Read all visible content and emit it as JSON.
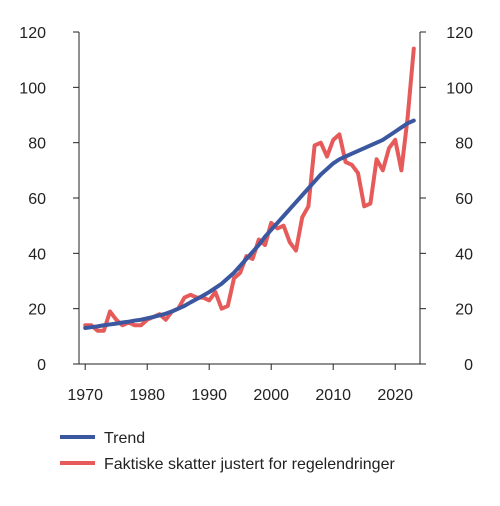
{
  "chart_data": {
    "type": "line",
    "title": "",
    "xlabel": "",
    "ylabel": "",
    "xlim": [
      1969,
      2024
    ],
    "ylim": [
      0,
      120
    ],
    "x_ticks": [
      1970,
      1980,
      1990,
      2000,
      2010,
      2020
    ],
    "y_ticks": [
      0,
      20,
      40,
      60,
      80,
      100,
      120
    ],
    "y_axis_both_sides": true,
    "grid": false,
    "legend_position": "bottom-left",
    "x": [
      1970,
      1971,
      1972,
      1973,
      1974,
      1975,
      1976,
      1977,
      1978,
      1979,
      1980,
      1981,
      1982,
      1983,
      1984,
      1985,
      1986,
      1987,
      1988,
      1989,
      1990,
      1991,
      1992,
      1993,
      1994,
      1995,
      1996,
      1997,
      1998,
      1999,
      2000,
      2001,
      2002,
      2003,
      2004,
      2005,
      2006,
      2007,
      2008,
      2009,
      2010,
      2011,
      2012,
      2013,
      2014,
      2015,
      2016,
      2017,
      2018,
      2019,
      2020,
      2021,
      2022,
      2023
    ],
    "series": [
      {
        "name": "Trend",
        "color": "#3a57a0",
        "values": [
          13,
          13.3,
          13.6,
          14,
          14.3,
          14.6,
          15,
          15.3,
          15.7,
          16,
          16.5,
          17,
          17.6,
          18.2,
          19,
          20,
          21,
          22.3,
          23.5,
          24.7,
          26,
          27.5,
          29,
          31,
          33,
          35.5,
          38,
          40.5,
          43,
          46,
          48.5,
          51,
          53.5,
          56,
          58.5,
          61,
          63.5,
          66,
          68.5,
          70.5,
          72.5,
          74,
          75,
          76,
          77,
          78,
          79,
          80,
          81,
          82.5,
          84,
          85.5,
          87,
          88
        ]
      },
      {
        "name": "Faktiske skatter justert for regelendringer",
        "color": "#e65a5a",
        "values": [
          14,
          14,
          12,
          12,
          19,
          16,
          14,
          15,
          14,
          14,
          16,
          17,
          18,
          16,
          19,
          20,
          24,
          25,
          24,
          24,
          23,
          26,
          20,
          21,
          31,
          33,
          39,
          38,
          45,
          43,
          51,
          49,
          50,
          44,
          41,
          53,
          57,
          79,
          80,
          75,
          81,
          83,
          73,
          72,
          69,
          57,
          58,
          74,
          70,
          78,
          81,
          70,
          89,
          114
        ]
      }
    ]
  }
}
